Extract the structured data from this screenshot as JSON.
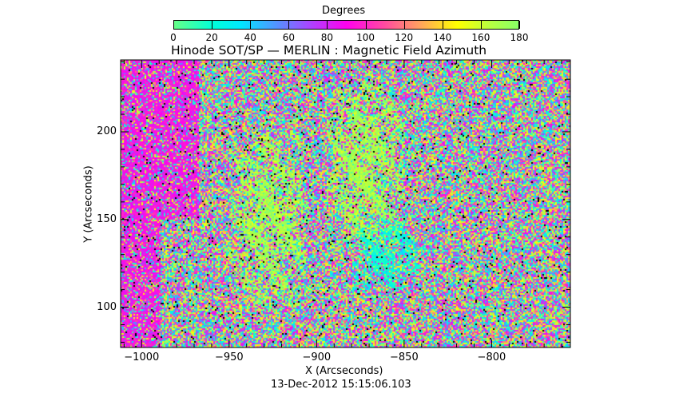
{
  "chart_data": {
    "type": "heatmap",
    "title": "Hinode SOT/SP — MERLIN : Magnetic Field Azimuth",
    "xlabel": "X (Arcseconds)",
    "ylabel": "Y (Arcseconds)",
    "xlim": [
      -1012,
      -755
    ],
    "ylim": [
      77,
      241
    ],
    "xticks": [
      -1000,
      -950,
      -900,
      -850,
      -800
    ],
    "xtick_labels": [
      "−1000",
      "−950",
      "−900",
      "−850",
      "−800"
    ],
    "yticks": [
      100,
      150,
      200
    ],
    "ytick_labels": [
      "100",
      "150",
      "200"
    ],
    "timestamp": "13-Dec-2012 15:15:06.103",
    "colorbar": {
      "label": "Degrees",
      "range": [
        0,
        180
      ],
      "ticks": [
        0,
        20,
        40,
        60,
        80,
        100,
        120,
        140,
        160,
        180
      ],
      "tick_labels": [
        "0",
        "20",
        "40",
        "60",
        "80",
        "100",
        "120",
        "140",
        "160",
        "180"
      ],
      "stops": [
        {
          "v": 0,
          "c": "#66ff88"
        },
        {
          "v": 20,
          "c": "#00ffd8"
        },
        {
          "v": 35,
          "c": "#00e8ff"
        },
        {
          "v": 55,
          "c": "#5a8cff"
        },
        {
          "v": 72,
          "c": "#b040ff"
        },
        {
          "v": 90,
          "c": "#ff00ee"
        },
        {
          "v": 110,
          "c": "#ff4aa0"
        },
        {
          "v": 128,
          "c": "#ffa060"
        },
        {
          "v": 148,
          "c": "#ffff00"
        },
        {
          "v": 165,
          "c": "#b8ff40"
        },
        {
          "v": 180,
          "c": "#88ff66"
        }
      ]
    },
    "features": [
      {
        "name": "limb-band",
        "x": [
          -1012,
          -990
        ],
        "y": [
          77,
          241
        ],
        "value": 90
      },
      {
        "name": "limb-streak",
        "x": [
          -990,
          -968
        ],
        "y": [
          150,
          241
        ],
        "value": 90
      },
      {
        "name": "field-region-1",
        "x": [
          -950,
          -905
        ],
        "y": [
          100,
          200
        ],
        "value": 170
      },
      {
        "name": "field-region-2",
        "x": [
          -895,
          -850
        ],
        "y": [
          130,
          230
        ],
        "value": 170
      },
      {
        "name": "field-region-3",
        "x": [
          -880,
          -840
        ],
        "y": [
          110,
          150
        ],
        "value": 20
      }
    ]
  }
}
